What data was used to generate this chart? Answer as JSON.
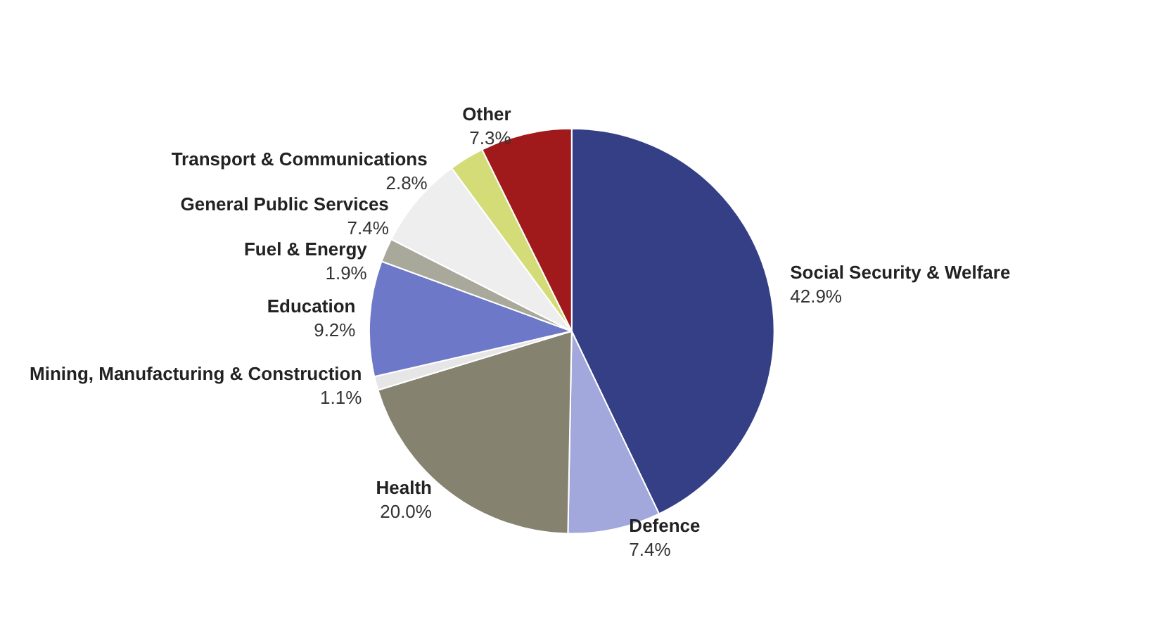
{
  "chart_data": {
    "type": "pie",
    "categories": [
      "Social Security & Welfare",
      "Defence",
      "Health",
      "Mining, Manufacturing & Construction",
      "Education",
      "Fuel & Energy",
      "General Public Services",
      "Transport & Communications",
      "Other"
    ],
    "values": [
      42.9,
      7.4,
      20.0,
      1.1,
      9.2,
      1.9,
      7.4,
      2.8,
      7.3
    ],
    "value_labels": [
      "42.9%",
      "7.4%",
      "20.0%",
      "1.1%",
      "9.2%",
      "1.9%",
      "7.4%",
      "2.8%",
      "7.3%"
    ],
    "colors": [
      "#353f86",
      "#a3a8dc",
      "#85826f",
      "#e6e6e6",
      "#6e78c8",
      "#a9a99b",
      "#eeeeee",
      "#d4dc78",
      "#a0191b"
    ],
    "legend": false
  }
}
